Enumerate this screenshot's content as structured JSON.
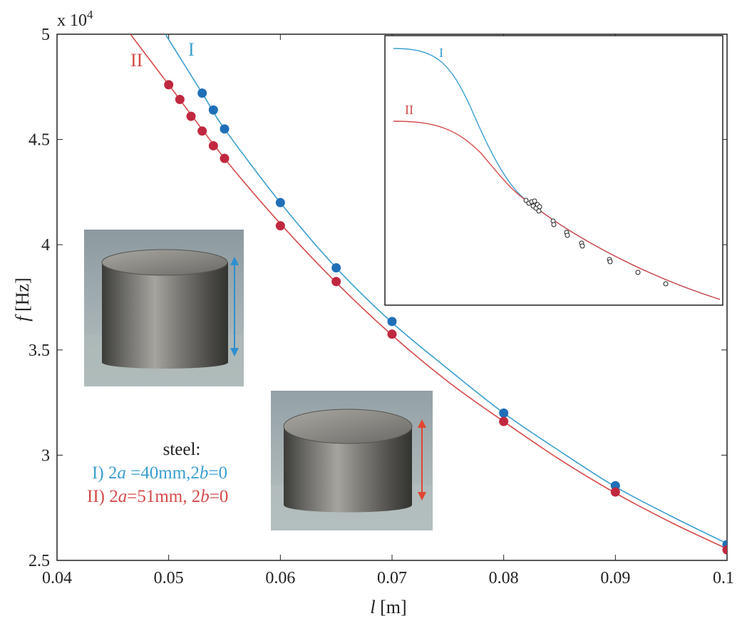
{
  "colors": {
    "series_I": "#3a9fd0",
    "series_II": "#d64a4a",
    "marker_I": "#1f6fb8",
    "marker_II": "#c0283f",
    "axis": "#222222"
  },
  "chart_data": {
    "type": "line",
    "title": "",
    "xlabel_var": "l",
    "xlabel_unit": " [m]",
    "ylabel_var": "f",
    "ylabel_unit": " [Hz]",
    "y_multiplier": "x 10",
    "y_multiplier_exp": "4",
    "xlim": [
      0.04,
      0.1
    ],
    "ylim": [
      2.5,
      5
    ],
    "x_ticks": [
      "0.04",
      "0.05",
      "0.06",
      "0.07",
      "0.08",
      "0.09",
      "0.1"
    ],
    "y_ticks": [
      "2.5",
      "3",
      "3.5",
      "4",
      "4.5",
      "5"
    ],
    "grid": false,
    "series": [
      {
        "name": "I",
        "curve": {
          "x": [
            0.053,
            0.055,
            0.06,
            0.065,
            0.07,
            0.075,
            0.08,
            0.085,
            0.09,
            0.095,
            0.1
          ],
          "y": [
            4.72,
            4.55,
            4.2,
            3.89,
            3.63,
            3.41,
            3.2,
            3.02,
            2.85,
            2.71,
            2.58
          ]
        },
        "points": {
          "x": [
            0.053,
            0.054,
            0.055,
            0.06,
            0.065,
            0.07,
            0.08,
            0.09,
            0.1
          ],
          "y": [
            4.72,
            4.64,
            4.55,
            4.2,
            3.89,
            3.635,
            3.2,
            2.855,
            2.575
          ]
        }
      },
      {
        "name": "II",
        "curve": {
          "x": [
            0.05,
            0.055,
            0.06,
            0.065,
            0.07,
            0.075,
            0.08,
            0.085,
            0.09,
            0.095,
            0.1
          ],
          "y": [
            4.76,
            4.41,
            4.1,
            3.82,
            3.57,
            3.35,
            3.16,
            2.98,
            2.82,
            2.68,
            2.555
          ]
        },
        "points": {
          "x": [
            0.05,
            0.051,
            0.052,
            0.053,
            0.054,
            0.055,
            0.06,
            0.065,
            0.07,
            0.08,
            0.09,
            0.1
          ],
          "y": [
            4.76,
            4.69,
            4.61,
            4.54,
            4.47,
            4.41,
            4.09,
            3.825,
            3.575,
            3.16,
            2.825,
            2.55
          ]
        }
      }
    ],
    "legend": {
      "heading": "steel:",
      "entries": [
        {
          "prefix": "I) 2",
          "a": "a",
          "mid": " =40mm,2",
          "b": "b",
          "suffix": "=0"
        },
        {
          "prefix": "II) 2",
          "a": "a",
          "mid": "=51mm, 2",
          "b": "b",
          "suffix": "=0"
        }
      ]
    },
    "inset": {
      "labels": [
        "I",
        "II"
      ]
    }
  }
}
